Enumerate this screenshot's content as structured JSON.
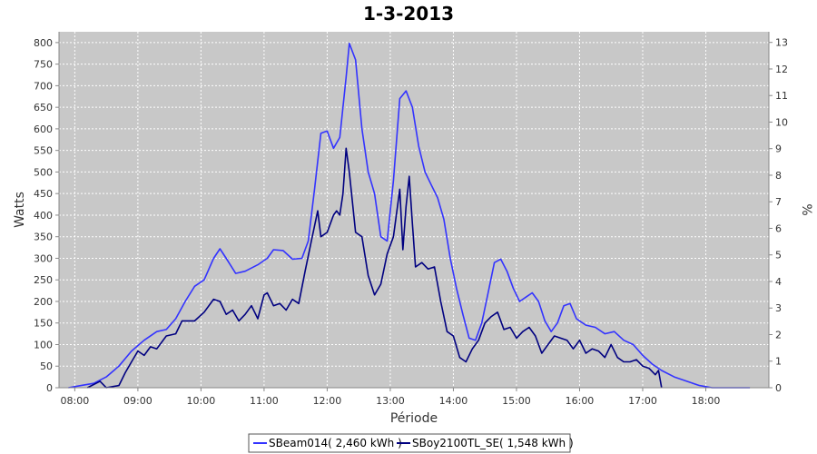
{
  "chart_data": {
    "type": "line",
    "title": "1-3-2013",
    "xlabel": "Période",
    "ylabel": "Watts",
    "y2label": "%",
    "xlim": [
      7.75,
      19.0
    ],
    "ylim": [
      0,
      825
    ],
    "y2lim": [
      0,
      13.4
    ],
    "x_ticks": [
      {
        "v": 8,
        "label": "08:00"
      },
      {
        "v": 9,
        "label": "09:00"
      },
      {
        "v": 10,
        "label": "10:00"
      },
      {
        "v": 11,
        "label": "11:00"
      },
      {
        "v": 12,
        "label": "12:00"
      },
      {
        "v": 13,
        "label": "13:00"
      },
      {
        "v": 14,
        "label": "14:00"
      },
      {
        "v": 15,
        "label": "15:00"
      },
      {
        "v": 16,
        "label": "16:00"
      },
      {
        "v": 17,
        "label": "17:00"
      },
      {
        "v": 18,
        "label": "18:00"
      }
    ],
    "y_ticks": [
      0,
      50,
      100,
      150,
      200,
      250,
      300,
      350,
      400,
      450,
      500,
      550,
      600,
      650,
      700,
      750,
      800
    ],
    "y2_ticks": [
      0,
      1,
      2,
      3,
      4,
      5,
      6,
      7,
      8,
      9,
      10,
      11,
      12,
      13
    ],
    "grid": true,
    "legend_position": "bottom",
    "series": [
      {
        "name": "SBeam014( 2,460 kWh )",
        "color": "#3333ff",
        "x": [
          7.9,
          8.1,
          8.3,
          8.5,
          8.7,
          8.9,
          9.1,
          9.3,
          9.45,
          9.6,
          9.75,
          9.9,
          10.05,
          10.2,
          10.3,
          10.4,
          10.55,
          10.7,
          10.9,
          11.05,
          11.15,
          11.3,
          11.45,
          11.6,
          11.7,
          11.8,
          11.9,
          12.0,
          12.1,
          12.2,
          12.3,
          12.35,
          12.45,
          12.55,
          12.65,
          12.75,
          12.85,
          12.95,
          13.05,
          13.15,
          13.25,
          13.35,
          13.45,
          13.55,
          13.65,
          13.75,
          13.85,
          13.95,
          14.05,
          14.15,
          14.25,
          14.35,
          14.45,
          14.55,
          14.65,
          14.75,
          14.85,
          14.95,
          15.05,
          15.15,
          15.25,
          15.35,
          15.45,
          15.55,
          15.65,
          15.75,
          15.85,
          15.95,
          16.1,
          16.25,
          16.4,
          16.55,
          16.7,
          16.85,
          17.0,
          17.15,
          17.3,
          17.5,
          17.7,
          17.9,
          18.1,
          18.4,
          18.7
        ],
        "values": [
          0,
          5,
          10,
          25,
          50,
          85,
          110,
          130,
          135,
          160,
          200,
          235,
          250,
          300,
          322,
          300,
          265,
          270,
          285,
          300,
          320,
          318,
          298,
          300,
          340,
          460,
          590,
          595,
          555,
          580,
          720,
          798,
          760,
          600,
          500,
          450,
          350,
          340,
          480,
          670,
          688,
          650,
          560,
          500,
          470,
          440,
          390,
          300,
          230,
          170,
          115,
          110,
          150,
          220,
          290,
          298,
          270,
          230,
          200,
          210,
          220,
          200,
          155,
          130,
          150,
          190,
          195,
          160,
          145,
          140,
          125,
          130,
          110,
          100,
          75,
          55,
          40,
          25,
          15,
          5,
          0,
          0,
          0
        ]
      },
      {
        "name": "SBoy2100TL_SE( 1,548 kWh )",
        "color": "#000080",
        "x": [
          8.2,
          8.4,
          8.5,
          8.7,
          8.8,
          8.9,
          9.0,
          9.1,
          9.2,
          9.3,
          9.45,
          9.6,
          9.7,
          9.8,
          9.9,
          10.05,
          10.2,
          10.3,
          10.4,
          10.5,
          10.6,
          10.7,
          10.8,
          10.9,
          11.0,
          11.05,
          11.15,
          11.25,
          11.35,
          11.45,
          11.55,
          11.65,
          11.75,
          11.85,
          11.9,
          12.0,
          12.1,
          12.15,
          12.2,
          12.25,
          12.3,
          12.35,
          12.45,
          12.55,
          12.65,
          12.75,
          12.85,
          12.95,
          13.05,
          13.15,
          13.2,
          13.25,
          13.3,
          13.35,
          13.4,
          13.5,
          13.6,
          13.7,
          13.8,
          13.9,
          14.0,
          14.1,
          14.2,
          14.3,
          14.4,
          14.5,
          14.6,
          14.7,
          14.8,
          14.9,
          15.0,
          15.1,
          15.2,
          15.3,
          15.4,
          15.5,
          15.6,
          15.7,
          15.8,
          15.9,
          16.0,
          16.1,
          16.2,
          16.3,
          16.4,
          16.5,
          16.6,
          16.7,
          16.8,
          16.9,
          17.0,
          17.1,
          17.2,
          17.25,
          17.3
        ],
        "values": [
          0,
          15,
          0,
          5,
          35,
          60,
          85,
          75,
          95,
          90,
          120,
          125,
          155,
          155,
          155,
          175,
          205,
          200,
          170,
          180,
          155,
          170,
          190,
          160,
          215,
          220,
          190,
          195,
          180,
          205,
          195,
          270,
          340,
          410,
          350,
          360,
          400,
          410,
          400,
          450,
          555,
          500,
          360,
          350,
          260,
          215,
          240,
          310,
          350,
          460,
          320,
          420,
          490,
          380,
          280,
          290,
          275,
          280,
          200,
          130,
          120,
          70,
          60,
          90,
          110,
          150,
          165,
          175,
          135,
          140,
          115,
          130,
          140,
          120,
          80,
          100,
          120,
          115,
          110,
          90,
          110,
          80,
          90,
          85,
          70,
          100,
          70,
          60,
          60,
          65,
          50,
          45,
          30,
          40,
          0
        ]
      }
    ]
  }
}
